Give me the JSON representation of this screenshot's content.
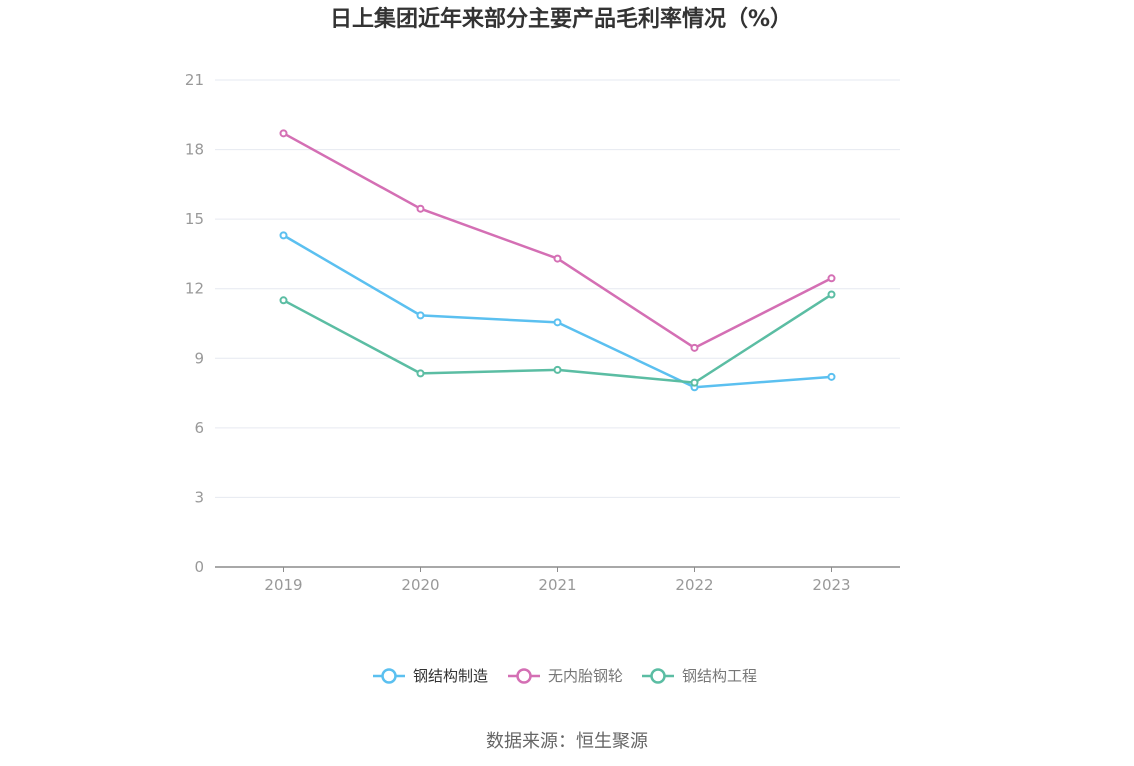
{
  "chart_data": {
    "type": "line",
    "title": "日上集团近年来部分主要产品毛利率情况（%）",
    "categories": [
      "2019",
      "2020",
      "2021",
      "2022",
      "2023"
    ],
    "series": [
      {
        "name": "钢结构制造",
        "color": "#5bc0f0",
        "values": [
          14.3,
          10.85,
          10.55,
          7.75,
          8.2
        ]
      },
      {
        "name": "无内胎钢轮",
        "color": "#d46fb4",
        "values": [
          18.7,
          15.45,
          13.3,
          9.45,
          12.45
        ]
      },
      {
        "name": "钢结构工程",
        "color": "#5bbda3",
        "values": [
          11.5,
          8.35,
          8.5,
          7.95,
          11.75
        ]
      }
    ],
    "yticks": [
      "0",
      "3",
      "6",
      "9",
      "12",
      "15",
      "18",
      "21"
    ],
    "ylim": [
      0,
      21
    ],
    "grid": true,
    "legend": "bottom"
  },
  "source": "数据来源：恒生聚源"
}
